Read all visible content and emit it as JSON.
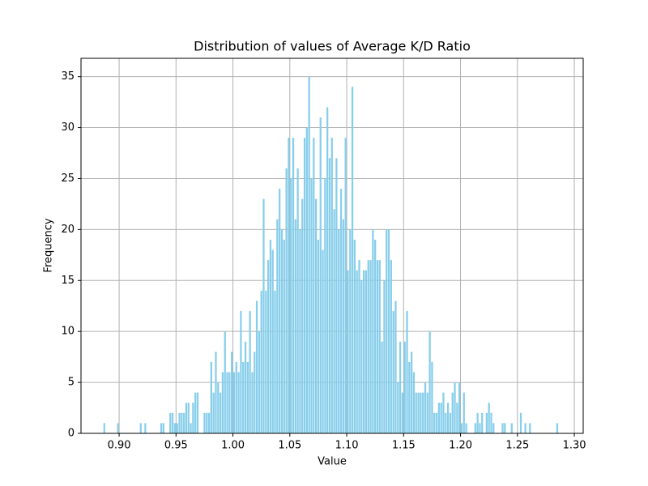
{
  "chart_data": {
    "type": "histogram",
    "title": "Distribution of values of Average K/D Ratio",
    "x_label": "Value",
    "y_label": "Frequency",
    "color": "#87ceeb",
    "grid": true,
    "bins": [
      0.886,
      0.888,
      0.89,
      0.892,
      0.894,
      0.896,
      0.898,
      0.9,
      0.902,
      0.904,
      0.906,
      0.908,
      0.91,
      0.912,
      0.914,
      0.916,
      0.918,
      0.92,
      0.922,
      0.924,
      0.926,
      0.928,
      0.93,
      0.932,
      0.934,
      0.936,
      0.938,
      0.94,
      0.942,
      0.944,
      0.946,
      0.948,
      0.95,
      0.952,
      0.954,
      0.956,
      0.958,
      0.96,
      0.962,
      0.964,
      0.966,
      0.968,
      0.97,
      0.972,
      0.974,
      0.976,
      0.978,
      0.98,
      0.982,
      0.984,
      0.986,
      0.988,
      0.99,
      0.992,
      0.994,
      0.996,
      0.998,
      1.0,
      1.002,
      1.004,
      1.006,
      1.008,
      1.01,
      1.012,
      1.014,
      1.016,
      1.018,
      1.02,
      1.022,
      1.024,
      1.026,
      1.028,
      1.03,
      1.032,
      1.034,
      1.036,
      1.038,
      1.04,
      1.042,
      1.044,
      1.046,
      1.048,
      1.05,
      1.052,
      1.054,
      1.056,
      1.058,
      1.06,
      1.062,
      1.064,
      1.066,
      1.068,
      1.07,
      1.072,
      1.074,
      1.076,
      1.078,
      1.08,
      1.082,
      1.084,
      1.086,
      1.088,
      1.09,
      1.092,
      1.094,
      1.096,
      1.098,
      1.1,
      1.102,
      1.104,
      1.106,
      1.108,
      1.11,
      1.112,
      1.114,
      1.116,
      1.118,
      1.12,
      1.122,
      1.124,
      1.126,
      1.128,
      1.13,
      1.132,
      1.134,
      1.136,
      1.138,
      1.14,
      1.142,
      1.144,
      1.146,
      1.148,
      1.15,
      1.152,
      1.154,
      1.156,
      1.158,
      1.16,
      1.162,
      1.164,
      1.166,
      1.168,
      1.17,
      1.172,
      1.174,
      1.176,
      1.178,
      1.18,
      1.182,
      1.184,
      1.186,
      1.188,
      1.19,
      1.192,
      1.194,
      1.196,
      1.198,
      1.2,
      1.202,
      1.204,
      1.206,
      1.208,
      1.21,
      1.212,
      1.214,
      1.216,
      1.218,
      1.22,
      1.222,
      1.224,
      1.226,
      1.228,
      1.23,
      1.232,
      1.234,
      1.236,
      1.238,
      1.24,
      1.242,
      1.244,
      1.246,
      1.248,
      1.25,
      1.252,
      1.254,
      1.256,
      1.258,
      1.26,
      1.262,
      1.264,
      1.266,
      1.268,
      1.27,
      1.272,
      1.274,
      1.276,
      1.278,
      1.28,
      1.282,
      1.284,
      1.286
    ],
    "values": [
      1,
      0,
      0,
      0,
      0,
      0,
      1,
      0,
      0,
      0,
      0,
      0,
      0,
      0,
      0,
      0,
      1,
      0,
      1,
      0,
      0,
      0,
      0,
      0,
      0,
      1,
      1,
      0,
      0,
      2,
      2,
      1,
      1,
      2,
      2,
      2,
      3,
      3,
      1,
      3,
      4,
      4,
      0,
      0,
      2,
      2,
      2,
      7,
      4,
      8,
      5,
      4,
      6,
      10,
      6,
      6,
      8,
      6,
      7,
      6,
      12,
      7,
      9,
      7,
      12,
      6,
      8,
      13,
      10,
      14,
      23,
      14,
      17,
      19,
      18,
      14,
      21,
      24,
      20,
      19,
      26,
      29,
      25,
      29,
      21,
      26,
      20,
      23,
      29,
      30,
      35,
      25,
      29,
      23,
      19,
      31,
      18,
      25,
      32,
      27,
      29,
      22,
      27,
      20,
      24,
      21,
      29,
      16,
      20,
      34,
      19,
      16,
      17,
      15,
      16,
      16,
      17,
      17,
      20,
      19,
      17,
      17,
      9,
      15,
      20,
      20,
      17,
      12,
      13,
      5,
      9,
      4,
      9,
      12,
      7,
      8,
      6,
      4,
      4,
      4,
      4,
      5,
      4,
      10,
      7,
      2,
      2,
      3,
      3,
      4,
      2,
      3,
      2,
      4,
      5,
      3,
      5,
      1,
      4,
      1,
      0,
      0,
      0,
      1,
      2,
      1,
      2,
      0,
      2,
      3,
      2,
      1,
      0,
      0,
      0,
      1,
      1,
      0,
      0,
      1,
      0,
      0,
      0,
      2,
      0,
      1,
      0,
      1,
      0,
      0,
      0,
      0,
      0,
      0,
      0,
      0,
      0,
      0,
      0,
      1
    ],
    "xlim": [
      0.8665,
      1.3078
    ],
    "ylim": [
      0,
      36.8
    ],
    "xticks": [
      {
        "value": 0.9,
        "label": "0.90"
      },
      {
        "value": 0.95,
        "label": "0.95"
      },
      {
        "value": 1.0,
        "label": "1.00"
      },
      {
        "value": 1.05,
        "label": "1.05"
      },
      {
        "value": 1.1,
        "label": "1.10"
      },
      {
        "value": 1.15,
        "label": "1.15"
      },
      {
        "value": 1.2,
        "label": "1.20"
      },
      {
        "value": 1.25,
        "label": "1.25"
      },
      {
        "value": 1.3,
        "label": "1.30"
      }
    ],
    "yticks": [
      0,
      5,
      10,
      15,
      20,
      25,
      30,
      35
    ]
  }
}
